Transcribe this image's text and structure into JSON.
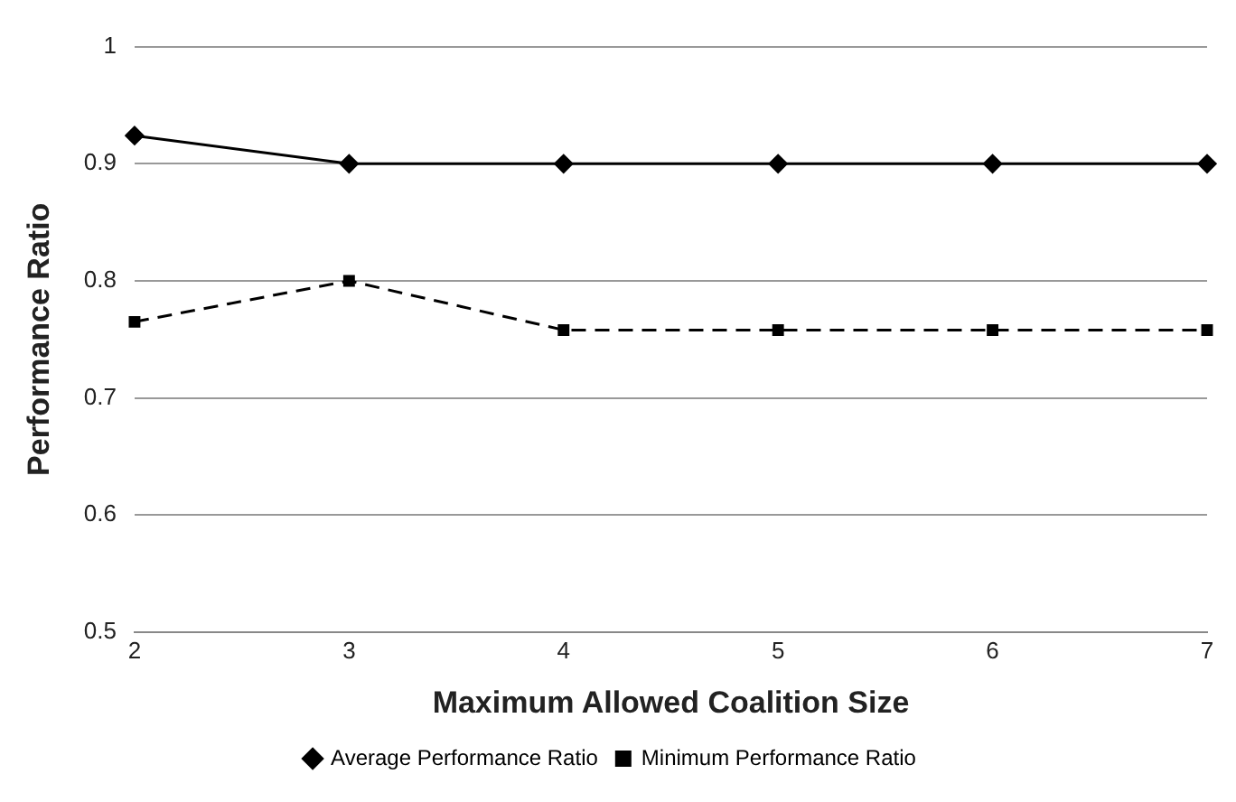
{
  "chart_data": {
    "type": "line",
    "xlabel": "Maximum Allowed Coalition Size",
    "ylabel": "Performance Ratio",
    "x": [
      2,
      3,
      4,
      5,
      6,
      7
    ],
    "xlim": [
      2,
      7
    ],
    "xticks": [
      2,
      3,
      4,
      5,
      6,
      7
    ],
    "ylim": [
      0.5,
      1
    ],
    "yticks": [
      0.5,
      0.6,
      0.7,
      0.8,
      0.9,
      1
    ],
    "series": [
      {
        "name": "Average Performance Ratio",
        "color": "#000000",
        "marker": "diamond",
        "line_style": "solid",
        "values": [
          0.924,
          0.9,
          0.9,
          0.9,
          0.9,
          0.9
        ]
      },
      {
        "name": "Minimum Performance Ratio",
        "color": "#000000",
        "marker": "square",
        "line_style": "dashed",
        "values": [
          0.765,
          0.8,
          0.758,
          0.758,
          0.758,
          0.758
        ]
      }
    ],
    "grid": "y",
    "legend": "bottom"
  }
}
